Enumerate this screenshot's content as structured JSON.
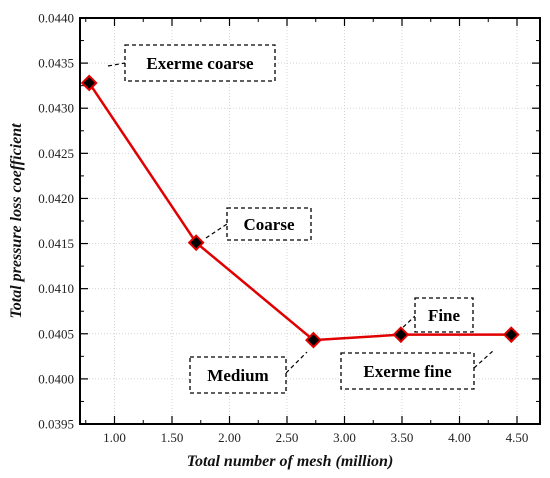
{
  "chart_data": {
    "type": "line",
    "title": "",
    "xlabel": "Total number of mesh (million)",
    "ylabel": "Total pressure loss coefficient",
    "xlim": [
      0.7,
      4.7
    ],
    "ylim": [
      0.0395,
      0.044
    ],
    "grid": true,
    "x_ticks": [
      1.0,
      1.5,
      2.0,
      2.5,
      3.0,
      3.5,
      4.0,
      4.5
    ],
    "x_tick_labels": [
      "1.00",
      "1.50",
      "2.00",
      "2.50",
      "3.00",
      "3.50",
      "4.00",
      "4.50"
    ],
    "y_ticks": [
      0.0395,
      0.04,
      0.0405,
      0.041,
      0.0415,
      0.042,
      0.0425,
      0.043,
      0.0435,
      0.044
    ],
    "y_tick_labels": [
      "0.0395",
      "0.0400",
      "0.0405",
      "0.0410",
      "0.0415",
      "0.0420",
      "0.0425",
      "0.0430",
      "0.0435",
      "0.0440"
    ],
    "series": [
      {
        "color": "#e00000",
        "marker_color": "#000000",
        "points": [
          {
            "x": 0.78,
            "y": 0.04328
          },
          {
            "x": 1.71,
            "y": 0.04151
          },
          {
            "x": 2.73,
            "y": 0.04043
          },
          {
            "x": 3.49,
            "y": 0.04049
          },
          {
            "x": 4.45,
            "y": 0.04049
          }
        ]
      }
    ],
    "annotations": [
      {
        "text": "Exerme coarse",
        "point_index": 0
      },
      {
        "text": "Coarse",
        "point_index": 1
      },
      {
        "text": "Medium",
        "point_index": 2
      },
      {
        "text": "Fine",
        "point_index": 3
      },
      {
        "text": "Exerme fine",
        "point_index": 4
      }
    ]
  }
}
